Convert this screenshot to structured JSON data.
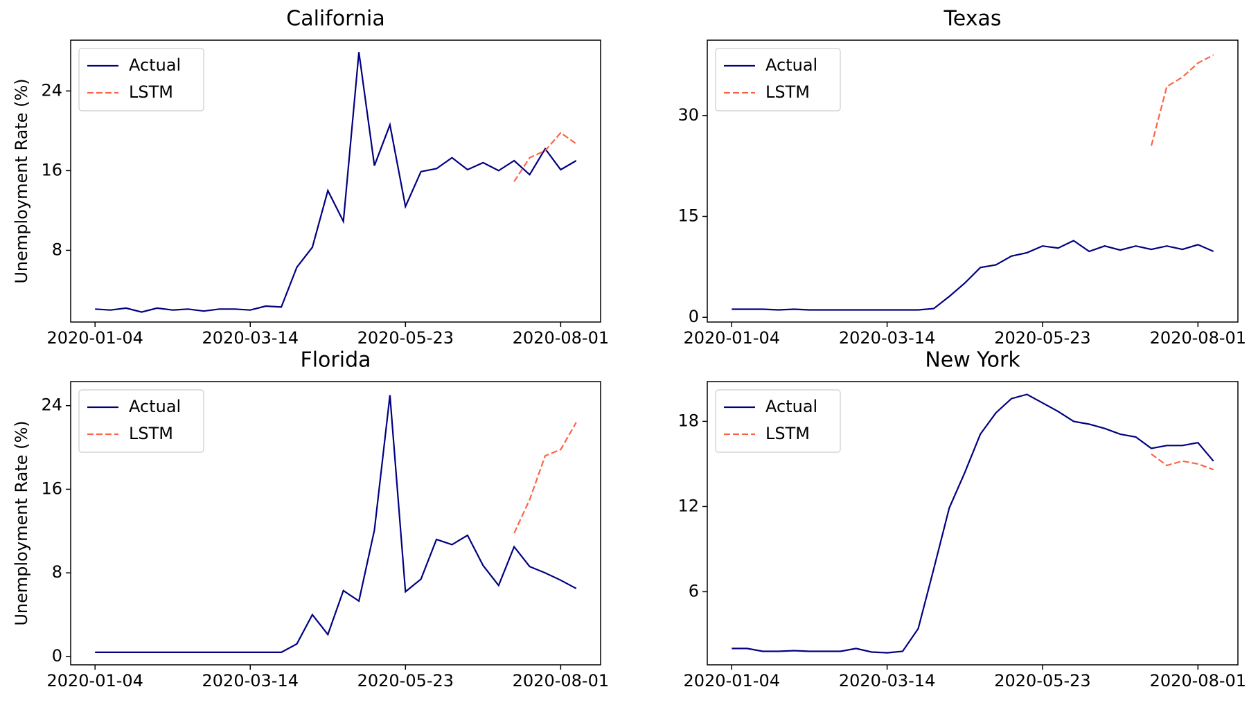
{
  "chart_data": [
    {
      "type": "line",
      "title": "California",
      "ylabel": "Unemployment Rate (%)",
      "x": [
        "2020-01-04",
        "2020-01-11",
        "2020-01-18",
        "2020-01-25",
        "2020-02-01",
        "2020-02-08",
        "2020-02-15",
        "2020-02-22",
        "2020-02-29",
        "2020-03-07",
        "2020-03-14",
        "2020-03-21",
        "2020-03-28",
        "2020-04-04",
        "2020-04-11",
        "2020-04-18",
        "2020-04-25",
        "2020-05-02",
        "2020-05-09",
        "2020-05-16",
        "2020-05-23",
        "2020-05-30",
        "2020-06-06",
        "2020-06-13",
        "2020-06-20",
        "2020-06-27",
        "2020-07-04",
        "2020-07-11",
        "2020-07-18",
        "2020-07-25",
        "2020-08-01",
        "2020-08-08"
      ],
      "xlim": [
        "2019-12-24",
        "2020-08-19"
      ],
      "xticks": [
        "2020-01-04",
        "2020-03-14",
        "2020-05-23",
        "2020-08-01"
      ],
      "ylim": [
        0.8,
        29.1
      ],
      "yticks": [
        8,
        16,
        24
      ],
      "legend": "upper left",
      "series": [
        {
          "name": "Actual",
          "color": "#000080",
          "linestyle": "solid",
          "values": [
            2.1,
            2.0,
            2.2,
            1.8,
            2.2,
            2.0,
            2.1,
            1.9,
            2.1,
            2.1,
            2.0,
            2.4,
            2.3,
            6.3,
            8.3,
            14.0,
            10.9,
            27.9,
            16.5,
            20.6,
            12.4,
            15.9,
            16.2,
            17.3,
            16.1,
            16.8,
            16.0,
            17.0,
            15.6,
            18.2,
            16.1,
            17.0
          ]
        },
        {
          "name": "LSTM",
          "color": "#ff6347",
          "linestyle": "dashed",
          "values": [
            null,
            null,
            null,
            null,
            null,
            null,
            null,
            null,
            null,
            null,
            null,
            null,
            null,
            null,
            null,
            null,
            null,
            null,
            null,
            null,
            null,
            null,
            null,
            null,
            null,
            null,
            null,
            14.9,
            17.3,
            18.0,
            19.8,
            18.7
          ]
        }
      ]
    },
    {
      "type": "line",
      "title": "Texas",
      "x": [
        "2020-01-04",
        "2020-01-11",
        "2020-01-18",
        "2020-01-25",
        "2020-02-01",
        "2020-02-08",
        "2020-02-15",
        "2020-02-22",
        "2020-02-29",
        "2020-03-07",
        "2020-03-14",
        "2020-03-21",
        "2020-03-28",
        "2020-04-04",
        "2020-04-11",
        "2020-04-18",
        "2020-04-25",
        "2020-05-02",
        "2020-05-09",
        "2020-05-16",
        "2020-05-23",
        "2020-05-30",
        "2020-06-06",
        "2020-06-13",
        "2020-06-20",
        "2020-06-27",
        "2020-07-04",
        "2020-07-11",
        "2020-07-18",
        "2020-07-25",
        "2020-08-01",
        "2020-08-08"
      ],
      "xlim": [
        "2019-12-24",
        "2020-08-19"
      ],
      "xticks": [
        "2020-01-04",
        "2020-03-14",
        "2020-05-23",
        "2020-08-01"
      ],
      "ylim": [
        -0.7,
        41.2
      ],
      "yticks": [
        0,
        15,
        30
      ],
      "legend": "upper left",
      "series": [
        {
          "name": "Actual",
          "color": "#000080",
          "linestyle": "solid",
          "values": [
            1.2,
            1.2,
            1.2,
            1.1,
            1.2,
            1.1,
            1.1,
            1.1,
            1.1,
            1.1,
            1.1,
            1.1,
            1.1,
            1.3,
            3.1,
            5.1,
            7.4,
            7.8,
            9.1,
            9.6,
            10.6,
            10.3,
            11.4,
            9.8,
            10.6,
            10.0,
            10.6,
            10.1,
            10.6,
            10.1,
            10.8,
            9.8
          ]
        },
        {
          "name": "LSTM",
          "color": "#ff6347",
          "linestyle": "dashed",
          "values": [
            null,
            null,
            null,
            null,
            null,
            null,
            null,
            null,
            null,
            null,
            null,
            null,
            null,
            null,
            null,
            null,
            null,
            null,
            null,
            null,
            null,
            null,
            null,
            null,
            null,
            null,
            null,
            25.5,
            34.3,
            35.7,
            37.8,
            39.0
          ]
        }
      ]
    },
    {
      "type": "line",
      "title": "Florida",
      "ylabel": "Unemployment Rate (%)",
      "x": [
        "2020-01-04",
        "2020-01-11",
        "2020-01-18",
        "2020-01-25",
        "2020-02-01",
        "2020-02-08",
        "2020-02-15",
        "2020-02-22",
        "2020-02-29",
        "2020-03-07",
        "2020-03-14",
        "2020-03-21",
        "2020-03-28",
        "2020-04-04",
        "2020-04-11",
        "2020-04-18",
        "2020-04-25",
        "2020-05-02",
        "2020-05-09",
        "2020-05-16",
        "2020-05-23",
        "2020-05-30",
        "2020-06-06",
        "2020-06-13",
        "2020-06-20",
        "2020-06-27",
        "2020-07-04",
        "2020-07-11",
        "2020-07-18",
        "2020-07-25",
        "2020-08-01",
        "2020-08-08"
      ],
      "xlim": [
        "2019-12-24",
        "2020-08-19"
      ],
      "xticks": [
        "2020-01-04",
        "2020-03-14",
        "2020-05-23",
        "2020-08-01"
      ],
      "ylim": [
        -0.8,
        26.3
      ],
      "yticks": [
        0,
        8,
        16,
        24
      ],
      "legend": "upper left",
      "series": [
        {
          "name": "Actual",
          "color": "#000080",
          "linestyle": "solid",
          "values": [
            0.4,
            0.4,
            0.4,
            0.4,
            0.4,
            0.4,
            0.4,
            0.4,
            0.4,
            0.4,
            0.4,
            0.4,
            0.4,
            1.2,
            4.0,
            2.1,
            6.3,
            5.3,
            12.1,
            25.0,
            6.2,
            7.4,
            11.2,
            10.7,
            11.6,
            8.7,
            6.8,
            10.5,
            8.6,
            8.0,
            7.3,
            6.5
          ]
        },
        {
          "name": "LSTM",
          "color": "#ff6347",
          "linestyle": "dashed",
          "values": [
            null,
            null,
            null,
            null,
            null,
            null,
            null,
            null,
            null,
            null,
            null,
            null,
            null,
            null,
            null,
            null,
            null,
            null,
            null,
            null,
            null,
            null,
            null,
            null,
            null,
            null,
            null,
            11.8,
            15.0,
            19.2,
            19.8,
            22.4
          ]
        }
      ]
    },
    {
      "type": "line",
      "title": "New York",
      "x": [
        "2020-01-04",
        "2020-01-11",
        "2020-01-18",
        "2020-01-25",
        "2020-02-01",
        "2020-02-08",
        "2020-02-15",
        "2020-02-22",
        "2020-02-29",
        "2020-03-07",
        "2020-03-14",
        "2020-03-21",
        "2020-03-28",
        "2020-04-04",
        "2020-04-11",
        "2020-04-18",
        "2020-04-25",
        "2020-05-02",
        "2020-05-09",
        "2020-05-16",
        "2020-05-23",
        "2020-05-30",
        "2020-06-06",
        "2020-06-13",
        "2020-06-20",
        "2020-06-27",
        "2020-07-04",
        "2020-07-11",
        "2020-07-18",
        "2020-07-25",
        "2020-08-01",
        "2020-08-08"
      ],
      "xlim": [
        "2019-12-24",
        "2020-08-19"
      ],
      "xticks": [
        "2020-01-04",
        "2020-03-14",
        "2020-05-23",
        "2020-08-01"
      ],
      "ylim": [
        0.85,
        20.8
      ],
      "yticks": [
        6,
        12,
        18
      ],
      "legend": "upper left",
      "series": [
        {
          "name": "Actual",
          "color": "#000080",
          "linestyle": "solid",
          "values": [
            2.0,
            2.0,
            1.8,
            1.8,
            1.85,
            1.8,
            1.8,
            1.8,
            2.0,
            1.75,
            1.7,
            1.8,
            3.4,
            7.6,
            11.9,
            14.4,
            17.1,
            18.6,
            19.6,
            19.9,
            19.3,
            18.7,
            18.0,
            17.8,
            17.5,
            17.1,
            16.9,
            16.1,
            16.3,
            16.3,
            16.5,
            15.2
          ]
        },
        {
          "name": "LSTM",
          "color": "#ff6347",
          "linestyle": "dashed",
          "values": [
            null,
            null,
            null,
            null,
            null,
            null,
            null,
            null,
            null,
            null,
            null,
            null,
            null,
            null,
            null,
            null,
            null,
            null,
            null,
            null,
            null,
            null,
            null,
            null,
            null,
            null,
            null,
            15.7,
            14.9,
            15.2,
            15.0,
            14.6
          ]
        }
      ]
    }
  ]
}
